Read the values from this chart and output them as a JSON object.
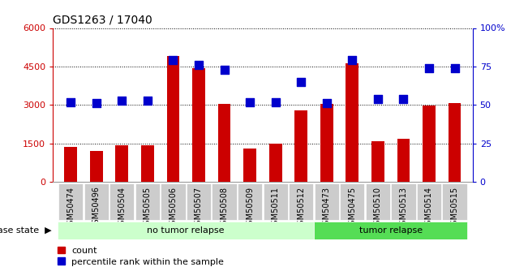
{
  "title": "GDS1263 / 17040",
  "samples": [
    "GSM50474",
    "GSM50496",
    "GSM50504",
    "GSM50505",
    "GSM50506",
    "GSM50507",
    "GSM50508",
    "GSM50509",
    "GSM50511",
    "GSM50512",
    "GSM50473",
    "GSM50475",
    "GSM50510",
    "GSM50513",
    "GSM50514",
    "GSM50515"
  ],
  "counts": [
    1380,
    1220,
    1430,
    1430,
    4900,
    4440,
    3050,
    1310,
    1490,
    2780,
    3050,
    4620,
    1580,
    1680,
    2980,
    3080
  ],
  "percentiles": [
    52,
    51,
    53,
    53,
    79,
    76,
    73,
    52,
    52,
    65,
    51,
    79,
    54,
    54,
    74,
    74
  ],
  "no_tumor_count": 10,
  "tumor_count": 6,
  "bar_color": "#cc0000",
  "dot_color": "#0000cc",
  "no_tumor_color": "#ccffcc",
  "tumor_color": "#55dd55",
  "tick_bg_color": "#cccccc",
  "ylim_left": [
    0,
    6000
  ],
  "ylim_right": [
    0,
    100
  ],
  "yticks_left": [
    0,
    1500,
    3000,
    4500,
    6000
  ],
  "yticks_right": [
    0,
    25,
    50,
    75,
    100
  ],
  "ylabel_left_color": "#cc0000",
  "ylabel_right_color": "#0000cc",
  "dot_size": 45,
  "bar_width": 0.5
}
